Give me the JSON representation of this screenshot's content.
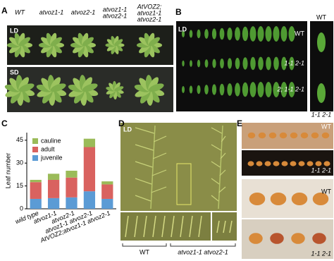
{
  "panels": {
    "A": {
      "letter": "A",
      "columns": [
        [
          "WT"
        ],
        [
          "atvoz1-1"
        ],
        [
          "atvoz2-1"
        ],
        [
          "atvoz1-1",
          "atvoz2-1"
        ],
        [
          "AtVOZ2;",
          "atvoz1-1",
          "atvoz2-1"
        ]
      ],
      "rows": [
        "LD",
        "SD"
      ]
    },
    "B": {
      "letter": "B",
      "condition": "LD",
      "rows": [
        "WT",
        "1-1 2-1",
        "2; 1-1 2-1"
      ],
      "inset": [
        "WT",
        "1-1 2-1"
      ]
    },
    "C": {
      "letter": "C"
    },
    "D": {
      "letter": "D",
      "condition": "LD",
      "groups": [
        "WT",
        "atvoz1-1 atvoz2-1"
      ]
    },
    "E": {
      "letter": "E",
      "labels": [
        "WT",
        "1-1 2-1",
        "WT",
        "1-1 2-1"
      ]
    }
  },
  "chart_data": {
    "type": "stacked-bar",
    "y_label": "Leaf number",
    "categories": [
      "wild type",
      "atvoz1-1",
      "atvoz2-1",
      "atvoz1-1 atvoz2-1",
      "AtVOZ2;atvoz1-1 atvoz2-1"
    ],
    "series": [
      {
        "name": "juvenile",
        "color": "#5b9bd5",
        "values": [
          6.5,
          7,
          7.5,
          11.5,
          6.5
        ]
      },
      {
        "name": "adult",
        "color": "#d9625f",
        "values": [
          11,
          12,
          13,
          29,
          9.5
        ]
      },
      {
        "name": "cauline",
        "color": "#9bbb59",
        "values": [
          1.5,
          4,
          4.5,
          5.5,
          2
        ]
      }
    ],
    "ylim": [
      0,
      50
    ],
    "yticks": [
      0,
      15,
      30,
      45
    ]
  }
}
